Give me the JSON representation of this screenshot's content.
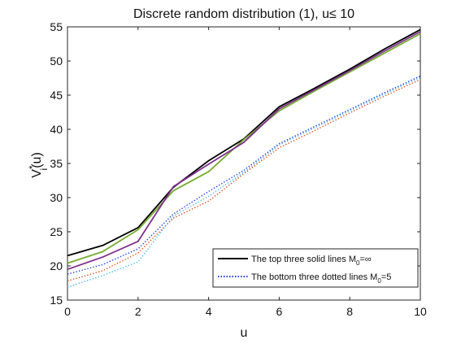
{
  "chart_data": {
    "type": "line",
    "title": "Discrete random distribution (1), u≤ 10",
    "xlabel": "u",
    "ylabel": "V*i(u)",
    "xlim": [
      0,
      10
    ],
    "ylim": [
      15,
      55
    ],
    "xticks": [
      0,
      2,
      4,
      6,
      8,
      10
    ],
    "yticks": [
      15,
      20,
      25,
      30,
      35,
      40,
      45,
      50,
      55
    ],
    "grid": false,
    "legend_position": "bottom-right",
    "legend": [
      {
        "label": "The top three solid lines M0=∞",
        "color": "#000000",
        "style": "solid"
      },
      {
        "label": "The bottom three dotted lines M0=5",
        "color": "#1f3fe0",
        "style": "dotted"
      }
    ],
    "x": [
      0,
      1,
      2,
      3,
      4,
      5,
      6,
      7,
      8,
      9,
      10
    ],
    "series": [
      {
        "color": "#000000",
        "style": "solid",
        "values": [
          21.5,
          23.0,
          25.6,
          31.5,
          35.4,
          38.6,
          43.3,
          46.0,
          48.8,
          51.8,
          54.6
        ]
      },
      {
        "color": "#77ac30",
        "style": "solid",
        "values": [
          20.4,
          22.1,
          25.3,
          31.0,
          33.8,
          38.5,
          42.7,
          45.6,
          48.4,
          51.2,
          54.0
        ]
      },
      {
        "color": "#7e2f8e",
        "style": "solid",
        "values": [
          19.5,
          21.3,
          23.6,
          31.6,
          34.9,
          38.1,
          43.0,
          45.8,
          48.6,
          51.5,
          54.3
        ]
      },
      {
        "color": "#1f3fe0",
        "style": "dotted",
        "values": [
          18.8,
          20.2,
          22.5,
          27.6,
          30.9,
          34.0,
          37.9,
          40.4,
          42.9,
          45.4,
          47.8
        ]
      },
      {
        "color": "#d95319",
        "style": "dotted",
        "values": [
          17.8,
          19.3,
          21.9,
          27.0,
          29.5,
          33.5,
          37.3,
          39.8,
          42.4,
          44.9,
          47.3
        ]
      },
      {
        "color": "#4dbeee",
        "style": "dotted",
        "values": [
          16.9,
          18.6,
          20.6,
          27.3,
          30.2,
          33.7,
          37.7,
          40.2,
          42.7,
          45.2,
          47.6
        ]
      }
    ]
  }
}
